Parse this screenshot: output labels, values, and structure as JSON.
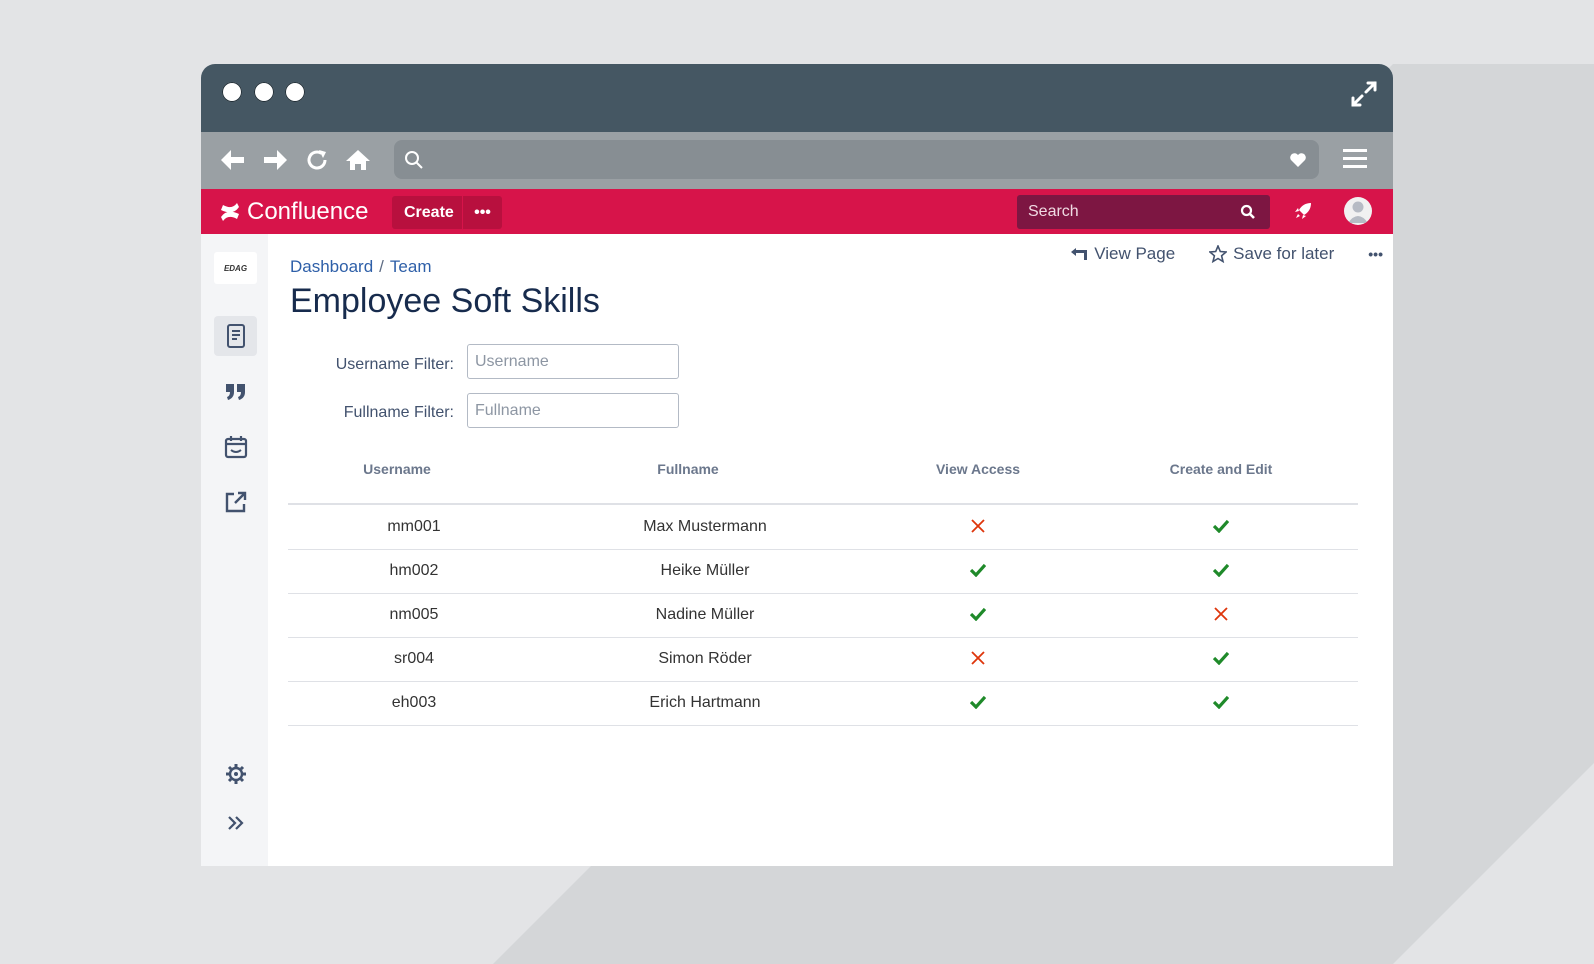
{
  "browser": {
    "window_dots": 3
  },
  "app": {
    "name": "Confluence",
    "create_label": "Create",
    "more_label": "•••",
    "search_placeholder": "Search"
  },
  "breadcrumb": [
    "Dashboard",
    "Team"
  ],
  "breadcrumb_separator": "/",
  "actions": {
    "view_page": "View Page",
    "save_for_later": "Save for later",
    "more": "•••"
  },
  "page": {
    "title": "Employee Soft Skills"
  },
  "filters": {
    "username_label": "Username Filter:",
    "username_placeholder": "Username",
    "fullname_label": "Fullname Filter:",
    "fullname_placeholder": "Fullname"
  },
  "sidebar": {
    "logo_text": "EDAG"
  },
  "table": {
    "headers": [
      "Username",
      "Fullname",
      "View Access",
      "Create and Edit"
    ],
    "rows": [
      {
        "username": "mm001",
        "fullname": "Max Mustermann",
        "view_access": false,
        "create_edit": true
      },
      {
        "username": "hm002",
        "fullname": "Heike Müller",
        "view_access": true,
        "create_edit": true
      },
      {
        "username": "nm005",
        "fullname": "Nadine Müller",
        "view_access": true,
        "create_edit": false
      },
      {
        "username": "sr004",
        "fullname": "Simon Röder",
        "view_access": false,
        "create_edit": true
      },
      {
        "username": "eh003",
        "fullname": "Erich Hartmann",
        "view_access": true,
        "create_edit": true
      }
    ]
  },
  "colors": {
    "brand": "#d7144a",
    "check": "#1f8a2a",
    "cross": "#de350b",
    "link": "#2e5fa8"
  }
}
